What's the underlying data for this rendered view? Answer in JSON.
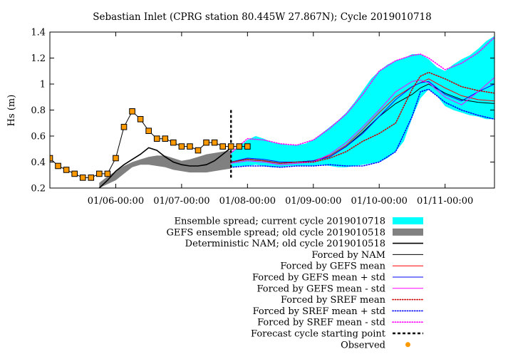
{
  "chart_data": {
    "type": "line",
    "title": "Sebastian Inlet (CPRG station 80.445W 27.867N); Cycle 2019010718",
    "xlabel": "",
    "ylabel": "Hs (m)",
    "xlim": [
      "01/05 00:00",
      "01/11 18:00"
    ],
    "ylim": [
      0.2,
      1.4
    ],
    "y_ticks": [
      0.2,
      0.4,
      0.6,
      0.8,
      1,
      1.2,
      1.4
    ],
    "y_tick_labels": [
      "0.2",
      "0.4",
      "0.6",
      "0.8",
      "1",
      "1.2",
      "1.4"
    ],
    "x_ticks": [
      "01/06 00:00",
      "01/07 00:00",
      "01/08 00:00",
      "01/09 00:00",
      "01/10 00:00",
      "01/11 00:00"
    ],
    "x_tick_labels": [
      "01/06-00:00",
      "01/07-00:00",
      "01/08-00:00",
      "01/09-00:00",
      "01/10-00:00",
      "01/11-00:00"
    ],
    "grid": false,
    "legend_position": "below",
    "forecast_start": "01/07 18:00",
    "series": [
      {
        "name": "Ensemble spread; current cycle 2019010718",
        "kind": "band",
        "color": "#00ffff",
        "x": [
          "01/07 18:00",
          "01/07 21:00",
          "01/08 00:00",
          "01/08 03:00",
          "01/08 06:00",
          "01/08 09:00",
          "01/08 12:00",
          "01/08 15:00",
          "01/08 18:00",
          "01/08 21:00",
          "01/09 00:00",
          "01/09 03:00",
          "01/09 06:00",
          "01/09 09:00",
          "01/09 12:00",
          "01/09 15:00",
          "01/09 18:00",
          "01/09 21:00",
          "01/10 00:00",
          "01/10 03:00",
          "01/10 06:00",
          "01/10 09:00",
          "01/10 12:00",
          "01/10 15:00",
          "01/10 18:00",
          "01/10 21:00",
          "01/11 00:00",
          "01/11 03:00",
          "01/11 06:00",
          "01/11 09:00",
          "01/11 12:00",
          "01/11 15:00",
          "01/11 18:00"
        ],
        "upper": [
          0.47,
          0.52,
          0.57,
          0.6,
          0.58,
          0.55,
          0.54,
          0.53,
          0.53,
          0.54,
          0.57,
          0.62,
          0.67,
          0.72,
          0.78,
          0.86,
          0.95,
          1.04,
          1.1,
          1.15,
          1.18,
          1.2,
          1.23,
          1.23,
          1.19,
          1.13,
          1.1,
          1.15,
          1.19,
          1.22,
          1.27,
          1.33,
          1.37
        ],
        "lower": [
          0.36,
          0.37,
          0.37,
          0.38,
          0.37,
          0.36,
          0.36,
          0.37,
          0.37,
          0.37,
          0.37,
          0.38,
          0.37,
          0.36,
          0.36,
          0.37,
          0.38,
          0.39,
          0.4,
          0.43,
          0.48,
          0.56,
          0.74,
          0.89,
          0.96,
          0.91,
          0.83,
          0.8,
          0.78,
          0.76,
          0.75,
          0.73,
          0.73
        ]
      },
      {
        "name": "GEFS ensemble spread; old cycle 2019010518",
        "kind": "band",
        "color": "#808080",
        "x": [
          "01/05 18:00",
          "01/05 21:00",
          "01/06 00:00",
          "01/06 03:00",
          "01/06 06:00",
          "01/06 09:00",
          "01/06 12:00",
          "01/06 15:00",
          "01/06 18:00",
          "01/06 21:00",
          "01/07 00:00",
          "01/07 03:00",
          "01/07 06:00",
          "01/07 09:00",
          "01/07 12:00",
          "01/07 15:00",
          "01/07 18:00"
        ],
        "upper": [
          0.24,
          0.29,
          0.33,
          0.37,
          0.4,
          0.42,
          0.44,
          0.45,
          0.45,
          0.43,
          0.41,
          0.42,
          0.44,
          0.46,
          0.47,
          0.48,
          0.49
        ],
        "lower": [
          0.2,
          0.23,
          0.26,
          0.31,
          0.36,
          0.38,
          0.38,
          0.37,
          0.36,
          0.34,
          0.33,
          0.32,
          0.32,
          0.32,
          0.33,
          0.34,
          0.35
        ]
      },
      {
        "name": "Deterministic NAM; old cycle 2019010518",
        "kind": "line",
        "color": "#000000",
        "width": 1.6,
        "x": [
          "01/05 18:00",
          "01/05 21:00",
          "01/06 00:00",
          "01/06 03:00",
          "01/06 06:00",
          "01/06 09:00",
          "01/06 12:00",
          "01/06 15:00",
          "01/06 18:00",
          "01/06 21:00",
          "01/07 00:00",
          "01/07 03:00",
          "01/07 06:00",
          "01/07 09:00",
          "01/07 12:00",
          "01/07 15:00",
          "01/07 18:00"
        ],
        "y": [
          0.2,
          0.26,
          0.33,
          0.38,
          0.42,
          0.46,
          0.51,
          0.49,
          0.44,
          0.4,
          0.38,
          0.37,
          0.37,
          0.38,
          0.41,
          0.46,
          0.51
        ]
      },
      {
        "name": "Forced by NAM",
        "kind": "line",
        "color": "#000000",
        "width": 1,
        "x": [
          "01/07 18:00",
          "01/08 00:00",
          "01/08 06:00",
          "01/08 12:00",
          "01/08 18:00",
          "01/09 00:00",
          "01/09 06:00",
          "01/09 12:00",
          "01/09 18:00",
          "01/10 00:00",
          "01/10 06:00",
          "01/10 12:00",
          "01/10 15:00",
          "01/10 18:00",
          "01/11 00:00",
          "01/11 06:00",
          "01/11 12:00",
          "01/11 18:00"
        ],
        "y": [
          0.4,
          0.42,
          0.41,
          0.39,
          0.4,
          0.41,
          0.44,
          0.52,
          0.63,
          0.75,
          0.85,
          0.92,
          0.97,
          1.0,
          0.93,
          0.88,
          0.86,
          0.85
        ]
      },
      {
        "name": "Forced by GEFS mean",
        "kind": "line",
        "color": "#ff0000",
        "width": 1,
        "x": [
          "01/07 18:00",
          "01/08 00:00",
          "01/08 06:00",
          "01/08 12:00",
          "01/08 18:00",
          "01/09 00:00",
          "01/09 06:00",
          "01/09 12:00",
          "01/09 18:00",
          "01/10 00:00",
          "01/10 06:00",
          "01/10 12:00",
          "01/10 15:00",
          "01/10 18:00",
          "01/11 00:00",
          "01/11 06:00",
          "01/11 12:00",
          "01/11 18:00"
        ],
        "y": [
          0.4,
          0.42,
          0.41,
          0.39,
          0.4,
          0.41,
          0.45,
          0.53,
          0.65,
          0.78,
          0.9,
          0.98,
          1.01,
          1.04,
          0.97,
          0.91,
          0.88,
          0.87
        ]
      },
      {
        "name": "Forced by GEFS mean + std",
        "kind": "line",
        "color": "#0000ff",
        "width": 1,
        "x": [
          "01/07 18:00",
          "01/08 00:00",
          "01/08 06:00",
          "01/08 12:00",
          "01/08 18:00",
          "01/09 00:00",
          "01/09 06:00",
          "01/09 12:00",
          "01/09 18:00",
          "01/10 00:00",
          "01/10 06:00",
          "01/10 12:00",
          "01/10 15:00",
          "01/10 18:00",
          "01/11 00:00",
          "01/11 06:00",
          "01/11 12:00",
          "01/11 18:00"
        ],
        "y": [
          0.4,
          0.43,
          0.42,
          0.4,
          0.4,
          0.41,
          0.44,
          0.52,
          0.62,
          0.75,
          0.88,
          0.98,
          1.01,
          1.02,
          0.92,
          0.87,
          0.94,
          1.0
        ]
      },
      {
        "name": "Forced by GEFS mean - std",
        "kind": "line",
        "color": "#ff00ff",
        "width": 1,
        "x": [
          "01/07 18:00",
          "01/08 00:00",
          "01/08 06:00",
          "01/08 12:00",
          "01/08 18:00",
          "01/09 00:00",
          "01/09 06:00",
          "01/09 12:00",
          "01/09 18:00",
          "01/10 00:00",
          "01/10 06:00",
          "01/10 12:00",
          "01/10 15:00",
          "01/10 18:00",
          "01/11 00:00",
          "01/11 06:00",
          "01/11 12:00",
          "01/11 18:00"
        ],
        "y": [
          0.39,
          0.41,
          0.4,
          0.38,
          0.39,
          0.4,
          0.46,
          0.55,
          0.67,
          0.8,
          0.94,
          1.02,
          1.03,
          1.01,
          0.9,
          0.84,
          0.94,
          1.05
        ]
      },
      {
        "name": "Forced by SREF mean",
        "kind": "dotted",
        "color": "#cc0000",
        "width": 1.6,
        "x": [
          "01/07 18:00",
          "01/08 00:00",
          "01/08 06:00",
          "01/08 12:00",
          "01/08 18:00",
          "01/09 00:00",
          "01/09 06:00",
          "01/09 12:00",
          "01/09 18:00",
          "01/10 00:00",
          "01/10 06:00",
          "01/10 12:00",
          "01/10 15:00",
          "01/10 18:00",
          "01/11 00:00",
          "01/11 06:00",
          "01/11 12:00",
          "01/11 18:00"
        ],
        "y": [
          0.4,
          0.42,
          0.41,
          0.39,
          0.4,
          0.4,
          0.43,
          0.48,
          0.56,
          0.62,
          0.7,
          0.96,
          1.06,
          1.09,
          1.04,
          0.98,
          0.95,
          0.93
        ]
      },
      {
        "name": "Forced by SREF mean + std",
        "kind": "dotted",
        "color": "#0000ff",
        "width": 1.6,
        "x": [
          "01/07 18:00",
          "01/08 00:00",
          "01/08 06:00",
          "01/08 12:00",
          "01/08 18:00",
          "01/09 00:00",
          "01/09 06:00",
          "01/09 12:00",
          "01/09 18:00",
          "01/10 00:00",
          "01/10 06:00",
          "01/10 12:00",
          "01/10 15:00",
          "01/10 18:00",
          "01/11 00:00",
          "01/11 06:00",
          "01/11 12:00",
          "01/11 18:00"
        ],
        "y": [
          0.36,
          0.37,
          0.37,
          0.36,
          0.37,
          0.37,
          0.38,
          0.37,
          0.37,
          0.4,
          0.48,
          0.75,
          0.94,
          0.96,
          0.86,
          0.8,
          0.76,
          0.73
        ]
      },
      {
        "name": "Forced by SREF mean - std",
        "kind": "dotted",
        "color": "#ff00ff",
        "width": 1.6,
        "x": [
          "01/07 18:00",
          "01/08 00:00",
          "01/08 06:00",
          "01/08 12:00",
          "01/08 18:00",
          "01/09 00:00",
          "01/09 06:00",
          "01/09 12:00",
          "01/09 18:00",
          "01/10 00:00",
          "01/10 06:00",
          "01/10 12:00",
          "01/10 15:00",
          "01/10 18:00",
          "01/11 00:00",
          "01/11 06:00",
          "01/11 12:00",
          "01/11 18:00"
        ],
        "y": [
          0.47,
          0.58,
          0.57,
          0.54,
          0.53,
          0.57,
          0.66,
          0.77,
          0.92,
          1.1,
          1.18,
          1.22,
          1.23,
          1.2,
          1.11,
          1.16,
          1.24,
          1.36
        ]
      },
      {
        "name": "Forecast cycle starting point",
        "kind": "vline",
        "color": "#000000",
        "x": "01/07 18:00"
      },
      {
        "name": "Observed",
        "kind": "points",
        "color": "#ff9900",
        "x": [
          "01/05 00:00",
          "01/05 03:00",
          "01/05 06:00",
          "01/05 09:00",
          "01/05 12:00",
          "01/05 15:00",
          "01/05 18:00",
          "01/05 21:00",
          "01/06 00:00",
          "01/06 03:00",
          "01/06 06:00",
          "01/06 09:00",
          "01/06 12:00",
          "01/06 15:00",
          "01/06 18:00",
          "01/06 21:00",
          "01/07 00:00",
          "01/07 03:00",
          "01/07 06:00",
          "01/07 09:00",
          "01/07 12:00",
          "01/07 15:00",
          "01/07 18:00",
          "01/07 21:00",
          "01/08 00:00"
        ],
        "y": [
          0.43,
          0.37,
          0.34,
          0.31,
          0.28,
          0.28,
          0.31,
          0.31,
          0.43,
          0.67,
          0.79,
          0.73,
          0.64,
          0.58,
          0.58,
          0.55,
          0.52,
          0.52,
          0.49,
          0.55,
          0.55,
          0.52,
          0.52,
          0.52,
          0.52
        ]
      }
    ]
  }
}
